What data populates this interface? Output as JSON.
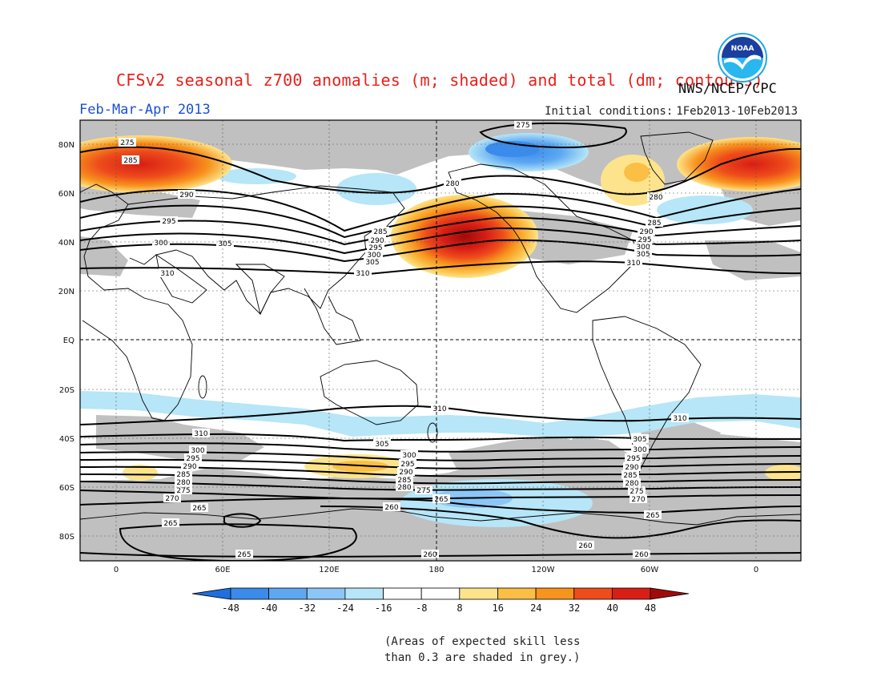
{
  "title": "CFSv2 seasonal z700 anomalies (m; shaded) and total (dm; contours)",
  "agency": "NWS/NCEP/CPC",
  "season": "Feb-Mar-Apr 2013",
  "initial_conditions": {
    "label": "Initial conditions:",
    "range": "1Feb2013-10Feb2013"
  },
  "footnote": {
    "line1": "(Areas of expected skill less",
    "line2": "than 0.3 are shaded in grey.)"
  },
  "logo": {
    "icon": "noaa-logo-icon",
    "text": "NOAA"
  },
  "map": {
    "lat_labels": [
      "80N",
      "60N",
      "40N",
      "20N",
      "EQ",
      "20S",
      "40S",
      "60S",
      "80S"
    ],
    "lon_labels": [
      "0",
      "60E",
      "120E",
      "180",
      "120W",
      "60W",
      "0"
    ],
    "contour_levels": [
      "310",
      "305",
      "300",
      "295",
      "290",
      "285",
      "280",
      "275",
      "270",
      "265",
      "260"
    ],
    "colors": {
      "skill_grey": "#c0c0c0",
      "contour": "#000000",
      "coast": "#000000"
    }
  },
  "colorbar": {
    "labels": [
      "-48",
      "-40",
      "-32",
      "-24",
      "-16",
      "-8",
      "8",
      "16",
      "24",
      "32",
      "40",
      "48"
    ],
    "colors": [
      "#1f6fe0",
      "#3a8bea",
      "#5ea8f2",
      "#8cc6f7",
      "#b6e6f7",
      "#ffffff",
      "#fde48c",
      "#fbbf45",
      "#f7941d",
      "#ee4c1b",
      "#d81e15",
      "#a10a0a"
    ]
  }
}
